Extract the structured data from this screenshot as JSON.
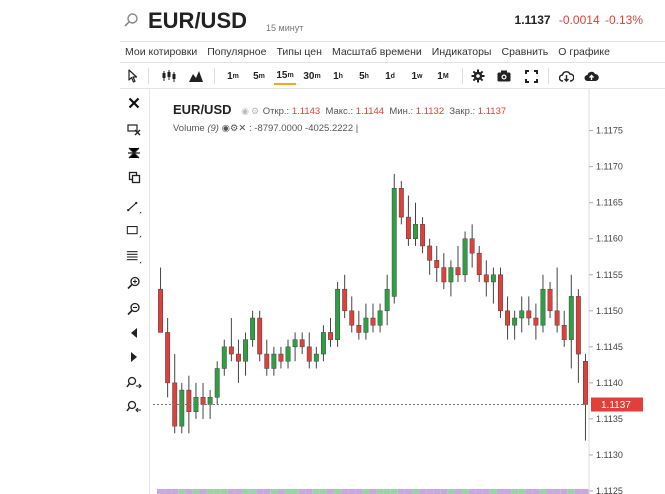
{
  "header": {
    "symbol": "EUR/USD",
    "interval": "15 минут",
    "last": "1.1137",
    "change": "-0.0014",
    "change_pct": "-0.13%"
  },
  "menu": [
    "Мои котировки",
    "Популярное",
    "Типы цен",
    "Масштаб времени",
    "Индикаторы",
    "Сравнить",
    "О графике"
  ],
  "toolbar": {
    "timeframes": [
      {
        "base": "1",
        "sup": "m",
        "active": false
      },
      {
        "base": "5",
        "sup": "m",
        "active": false
      },
      {
        "base": "15",
        "sup": "m",
        "active": true
      },
      {
        "base": "30",
        "sup": "m",
        "active": false
      },
      {
        "base": "1",
        "sup": "h",
        "active": false
      },
      {
        "base": "5",
        "sup": "h",
        "active": false
      },
      {
        "base": "1",
        "sup": "d",
        "active": false
      },
      {
        "base": "1",
        "sup": "w",
        "active": false
      },
      {
        "base": "1",
        "sup": "M",
        "active": false
      }
    ],
    "icons": [
      "cursor-icon",
      "candlestick-icon",
      "mountain-chart-icon",
      "gear-icon",
      "camera-icon",
      "fullscreen-icon",
      "download-icon",
      "upload-icon"
    ]
  },
  "left_tools": [
    "close-icon",
    "delete-drawing-icon",
    "magnet-icon",
    "clone-icon",
    "trendline-icon",
    "rectangle-icon",
    "fibonacci-icon",
    "zoom-in-icon",
    "zoom-out-icon",
    "scroll-left-icon",
    "scroll-right-icon",
    "zoom-in-time-icon",
    "zoom-out-time-icon"
  ],
  "legend": {
    "symbol": "EUR/USD",
    "open_label": "Откр.:",
    "open": "1.1143",
    "high_label": "Макс.:",
    "high": "1.1144",
    "low_label": "Мин.:",
    "low": "1.1132",
    "close_label": "Закр.:",
    "close": "1.1137",
    "volume_label": "Volume",
    "volume_period": "(9)",
    "volume_v1": "-8797.0000",
    "volume_v2": "-4025.2222",
    "volume_cursor": "|"
  },
  "colors": {
    "up": "#2ea043",
    "down": "#e0403a",
    "price_tag": "#e0403a"
  },
  "chart_data": {
    "type": "candlestick",
    "price_axis_ticks": [
      "1.1175",
      "1.1170",
      "1.1165",
      "1.1160",
      "1.1155",
      "1.1150",
      "1.1145",
      "1.1140",
      "1.1135",
      "1.1130",
      "1.1125"
    ],
    "ylim": [
      1.1125,
      1.1178
    ],
    "current_price": "1.1137",
    "candles": [
      {
        "o": 1.1153,
        "h": 1.1156,
        "l": 1.1147,
        "c": 1.1147
      },
      {
        "o": 1.1147,
        "h": 1.1149,
        "l": 1.1138,
        "c": 1.114
      },
      {
        "o": 1.114,
        "h": 1.1144,
        "l": 1.1133,
        "c": 1.1134
      },
      {
        "o": 1.1134,
        "h": 1.114,
        "l": 1.1133,
        "c": 1.1139
      },
      {
        "o": 1.1139,
        "h": 1.1141,
        "l": 1.1133,
        "c": 1.1136
      },
      {
        "o": 1.1136,
        "h": 1.114,
        "l": 1.1135,
        "c": 1.1138
      },
      {
        "o": 1.1138,
        "h": 1.114,
        "l": 1.1135,
        "c": 1.1137
      },
      {
        "o": 1.1137,
        "h": 1.1139,
        "l": 1.1135,
        "c": 1.1138
      },
      {
        "o": 1.1138,
        "h": 1.1143,
        "l": 1.1137,
        "c": 1.1142
      },
      {
        "o": 1.1142,
        "h": 1.1146,
        "l": 1.1141,
        "c": 1.1145
      },
      {
        "o": 1.1145,
        "h": 1.1149,
        "l": 1.1143,
        "c": 1.1144
      },
      {
        "o": 1.1144,
        "h": 1.1146,
        "l": 1.114,
        "c": 1.1143
      },
      {
        "o": 1.1143,
        "h": 1.1147,
        "l": 1.1141,
        "c": 1.1146
      },
      {
        "o": 1.1146,
        "h": 1.115,
        "l": 1.1145,
        "c": 1.1149
      },
      {
        "o": 1.1149,
        "h": 1.115,
        "l": 1.1143,
        "c": 1.1144
      },
      {
        "o": 1.1144,
        "h": 1.1146,
        "l": 1.1141,
        "c": 1.1142
      },
      {
        "o": 1.1142,
        "h": 1.1145,
        "l": 1.1141,
        "c": 1.1144
      },
      {
        "o": 1.1144,
        "h": 1.1145,
        "l": 1.1142,
        "c": 1.1143
      },
      {
        "o": 1.1143,
        "h": 1.1146,
        "l": 1.1142,
        "c": 1.1145
      },
      {
        "o": 1.1145,
        "h": 1.1147,
        "l": 1.1143,
        "c": 1.1146
      },
      {
        "o": 1.1146,
        "h": 1.1147,
        "l": 1.1144,
        "c": 1.1145
      },
      {
        "o": 1.1145,
        "h": 1.1147,
        "l": 1.1142,
        "c": 1.1143
      },
      {
        "o": 1.1143,
        "h": 1.1145,
        "l": 1.1142,
        "c": 1.1144
      },
      {
        "o": 1.1144,
        "h": 1.1148,
        "l": 1.1143,
        "c": 1.1147
      },
      {
        "o": 1.1147,
        "h": 1.1149,
        "l": 1.1145,
        "c": 1.1146
      },
      {
        "o": 1.1146,
        "h": 1.1154,
        "l": 1.1145,
        "c": 1.1153
      },
      {
        "o": 1.1153,
        "h": 1.1155,
        "l": 1.1149,
        "c": 1.115
      },
      {
        "o": 1.115,
        "h": 1.1152,
        "l": 1.1147,
        "c": 1.1148
      },
      {
        "o": 1.1148,
        "h": 1.115,
        "l": 1.1146,
        "c": 1.1147
      },
      {
        "o": 1.1147,
        "h": 1.1151,
        "l": 1.1146,
        "c": 1.1149
      },
      {
        "o": 1.1149,
        "h": 1.1151,
        "l": 1.1147,
        "c": 1.1148
      },
      {
        "o": 1.1148,
        "h": 1.1151,
        "l": 1.1147,
        "c": 1.115
      },
      {
        "o": 1.115,
        "h": 1.1155,
        "l": 1.1148,
        "c": 1.1153
      },
      {
        "o": 1.1152,
        "h": 1.1169,
        "l": 1.1151,
        "c": 1.1167
      },
      {
        "o": 1.1167,
        "h": 1.1168,
        "l": 1.1162,
        "c": 1.1163
      },
      {
        "o": 1.1163,
        "h": 1.1166,
        "l": 1.1159,
        "c": 1.116
      },
      {
        "o": 1.116,
        "h": 1.1165,
        "l": 1.1159,
        "c": 1.1162
      },
      {
        "o": 1.1162,
        "h": 1.1163,
        "l": 1.1158,
        "c": 1.1159
      },
      {
        "o": 1.1159,
        "h": 1.116,
        "l": 1.1155,
        "c": 1.1157
      },
      {
        "o": 1.1157,
        "h": 1.1159,
        "l": 1.1154,
        "c": 1.1156
      },
      {
        "o": 1.1156,
        "h": 1.1158,
        "l": 1.1153,
        "c": 1.1154
      },
      {
        "o": 1.1154,
        "h": 1.1157,
        "l": 1.1152,
        "c": 1.1156
      },
      {
        "o": 1.1156,
        "h": 1.1159,
        "l": 1.1154,
        "c": 1.1155
      },
      {
        "o": 1.1155,
        "h": 1.1161,
        "l": 1.1154,
        "c": 1.116
      },
      {
        "o": 1.116,
        "h": 1.1162,
        "l": 1.1156,
        "c": 1.1158
      },
      {
        "o": 1.1158,
        "h": 1.1159,
        "l": 1.1154,
        "c": 1.1155
      },
      {
        "o": 1.1155,
        "h": 1.1157,
        "l": 1.1152,
        "c": 1.1154
      },
      {
        "o": 1.1154,
        "h": 1.1156,
        "l": 1.1151,
        "c": 1.1155
      },
      {
        "o": 1.1155,
        "h": 1.1156,
        "l": 1.1149,
        "c": 1.115
      },
      {
        "o": 1.115,
        "h": 1.1152,
        "l": 1.1146,
        "c": 1.1148
      },
      {
        "o": 1.1148,
        "h": 1.115,
        "l": 1.1146,
        "c": 1.1149
      },
      {
        "o": 1.1149,
        "h": 1.1152,
        "l": 1.1147,
        "c": 1.115
      },
      {
        "o": 1.115,
        "h": 1.1152,
        "l": 1.1148,
        "c": 1.1149
      },
      {
        "o": 1.1149,
        "h": 1.1151,
        "l": 1.1146,
        "c": 1.1148
      },
      {
        "o": 1.1148,
        "h": 1.1155,
        "l": 1.1147,
        "c": 1.1153
      },
      {
        "o": 1.1153,
        "h": 1.1154,
        "l": 1.1149,
        "c": 1.115
      },
      {
        "o": 1.115,
        "h": 1.1156,
        "l": 1.1147,
        "c": 1.1148
      },
      {
        "o": 1.1148,
        "h": 1.115,
        "l": 1.1145,
        "c": 1.1146
      },
      {
        "o": 1.1146,
        "h": 1.1155,
        "l": 1.1142,
        "c": 1.1152
      },
      {
        "o": 1.1152,
        "h": 1.1153,
        "l": 1.114,
        "c": 1.1144
      },
      {
        "o": 1.1143,
        "h": 1.1144,
        "l": 1.1132,
        "c": 1.1137
      }
    ]
  }
}
